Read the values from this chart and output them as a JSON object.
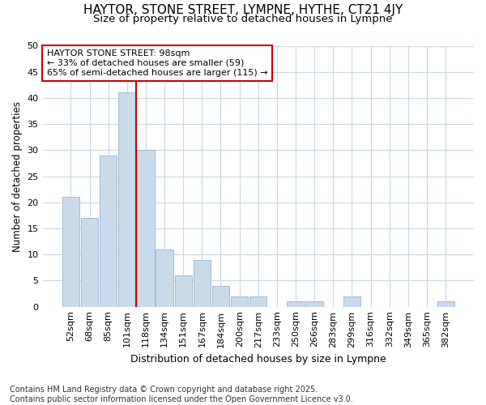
{
  "title": "HAYTOR, STONE STREET, LYMPNE, HYTHE, CT21 4JY",
  "subtitle": "Size of property relative to detached houses in Lympne",
  "xlabel": "Distribution of detached houses by size in Lympne",
  "ylabel": "Number of detached properties",
  "categories": [
    "52sqm",
    "68sqm",
    "85sqm",
    "101sqm",
    "118sqm",
    "134sqm",
    "151sqm",
    "167sqm",
    "184sqm",
    "200sqm",
    "217sqm",
    "233sqm",
    "250sqm",
    "266sqm",
    "283sqm",
    "299sqm",
    "316sqm",
    "332sqm",
    "349sqm",
    "365sqm",
    "382sqm"
  ],
  "values": [
    21,
    17,
    29,
    41,
    30,
    11,
    6,
    9,
    4,
    2,
    2,
    0,
    1,
    1,
    0,
    2,
    0,
    0,
    0,
    0,
    1
  ],
  "bar_color": "#c9daea",
  "bar_edge_color": "#a0bcd4",
  "vline_x": 3.5,
  "vline_color": "#cc0000",
  "annotation_text": "HAYTOR STONE STREET: 98sqm\n← 33% of detached houses are smaller (59)\n65% of semi-detached houses are larger (115) →",
  "annotation_box_color": "#ffffff",
  "annotation_box_edge": "#cc0000",
  "ylim": [
    0,
    50
  ],
  "yticks": [
    0,
    5,
    10,
    15,
    20,
    25,
    30,
    35,
    40,
    45,
    50
  ],
  "footnote": "Contains HM Land Registry data © Crown copyright and database right 2025.\nContains public sector information licensed under the Open Government Licence v3.0.",
  "bg_color": "#ffffff",
  "grid_color": "#c8d8e8",
  "title_fontsize": 11,
  "subtitle_fontsize": 9.5,
  "xlabel_fontsize": 9,
  "ylabel_fontsize": 8.5,
  "tick_fontsize": 8,
  "annotation_fontsize": 8,
  "footnote_fontsize": 7
}
